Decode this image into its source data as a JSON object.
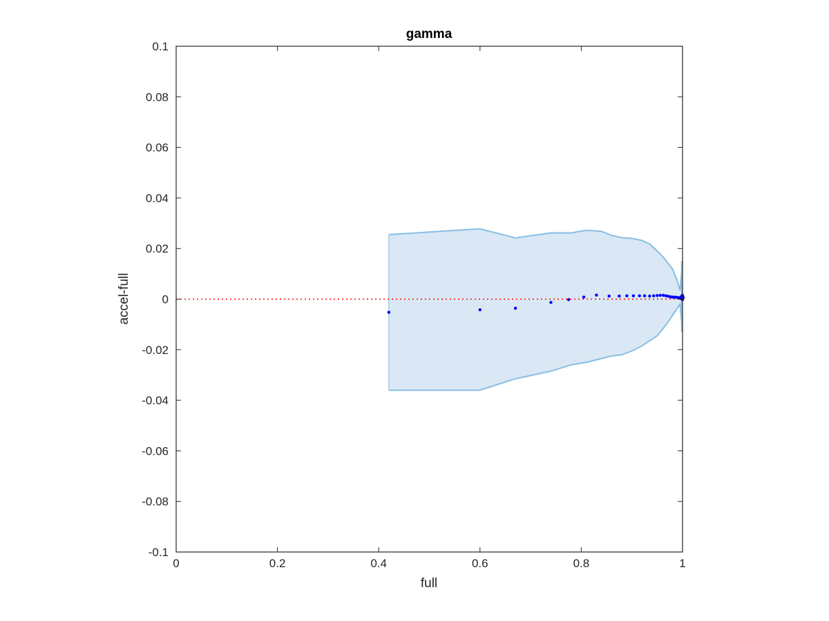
{
  "chart_data": {
    "type": "scatter",
    "title": "gamma",
    "xlabel": "full",
    "ylabel": "accel-full",
    "xlim": [
      0,
      1
    ],
    "ylim": [
      -0.1,
      0.1
    ],
    "grid": false,
    "legend": "none",
    "x_ticks": [
      0,
      0.2,
      0.4,
      0.6,
      0.8,
      1
    ],
    "x_tick_labels": [
      "0",
      "0.2",
      "0.4",
      "0.6",
      "0.8",
      "1"
    ],
    "y_ticks": [
      -0.1,
      -0.08,
      -0.06,
      -0.04,
      -0.02,
      0,
      0.02,
      0.04,
      0.06,
      0.08,
      0.1
    ],
    "y_tick_labels": [
      "-0.1",
      "-0.08",
      "-0.06",
      "-0.04",
      "-0.02",
      "0",
      "0.02",
      "0.04",
      "0.06",
      "0.08",
      "0.1"
    ],
    "reference_line": {
      "y": 0,
      "style": "dotted",
      "color": "#ff0000"
    },
    "band": {
      "upper": [
        {
          "x": 0.42,
          "y": 0.0255
        },
        {
          "x": 0.6,
          "y": 0.0278
        },
        {
          "x": 0.67,
          "y": 0.0242
        },
        {
          "x": 0.74,
          "y": 0.0262
        },
        {
          "x": 0.78,
          "y": 0.0262
        },
        {
          "x": 0.81,
          "y": 0.0272
        },
        {
          "x": 0.84,
          "y": 0.0268
        },
        {
          "x": 0.86,
          "y": 0.0252
        },
        {
          "x": 0.88,
          "y": 0.0243
        },
        {
          "x": 0.9,
          "y": 0.024
        },
        {
          "x": 0.92,
          "y": 0.0232
        },
        {
          "x": 0.935,
          "y": 0.0218
        },
        {
          "x": 0.95,
          "y": 0.019
        },
        {
          "x": 0.96,
          "y": 0.017
        },
        {
          "x": 0.97,
          "y": 0.0145
        },
        {
          "x": 0.98,
          "y": 0.012
        },
        {
          "x": 0.99,
          "y": 0.007
        },
        {
          "x": 0.995,
          "y": 0.0035
        },
        {
          "x": 1.0,
          "y": 0.015
        }
      ],
      "lower": [
        {
          "x": 0.42,
          "y": -0.036
        },
        {
          "x": 0.6,
          "y": -0.036
        },
        {
          "x": 0.67,
          "y": -0.0315
        },
        {
          "x": 0.74,
          "y": -0.0285
        },
        {
          "x": 0.78,
          "y": -0.026
        },
        {
          "x": 0.81,
          "y": -0.025
        },
        {
          "x": 0.84,
          "y": -0.0235
        },
        {
          "x": 0.86,
          "y": -0.0225
        },
        {
          "x": 0.88,
          "y": -0.022
        },
        {
          "x": 0.9,
          "y": -0.0205
        },
        {
          "x": 0.92,
          "y": -0.0185
        },
        {
          "x": 0.935,
          "y": -0.0165
        },
        {
          "x": 0.95,
          "y": -0.0145
        },
        {
          "x": 0.96,
          "y": -0.012
        },
        {
          "x": 0.97,
          "y": -0.0095
        },
        {
          "x": 0.98,
          "y": -0.0065
        },
        {
          "x": 0.99,
          "y": -0.0035
        },
        {
          "x": 0.995,
          "y": -0.002
        },
        {
          "x": 1.0,
          "y": -0.013
        }
      ],
      "fill_color": "#d9e8f4",
      "edge_color": "#88bde3"
    },
    "series": [
      {
        "color": "#0000ff",
        "points": [
          {
            "x": 0.42,
            "y": -0.0052
          },
          {
            "x": 0.6,
            "y": -0.0042
          },
          {
            "x": 0.67,
            "y": -0.0036
          },
          {
            "x": 0.74,
            "y": -0.0013
          },
          {
            "x": 0.775,
            "y": -0.0002
          },
          {
            "x": 0.805,
            "y": 0.0008
          },
          {
            "x": 0.83,
            "y": 0.0016
          },
          {
            "x": 0.855,
            "y": 0.0012
          },
          {
            "x": 0.875,
            "y": 0.0012
          },
          {
            "x": 0.89,
            "y": 0.0013
          },
          {
            "x": 0.903,
            "y": 0.0013
          },
          {
            "x": 0.915,
            "y": 0.0013
          },
          {
            "x": 0.925,
            "y": 0.0013
          },
          {
            "x": 0.935,
            "y": 0.0012
          },
          {
            "x": 0.943,
            "y": 0.0013
          },
          {
            "x": 0.95,
            "y": 0.0014
          },
          {
            "x": 0.956,
            "y": 0.0015
          },
          {
            "x": 0.962,
            "y": 0.0015
          },
          {
            "x": 0.967,
            "y": 0.0013
          },
          {
            "x": 0.972,
            "y": 0.0011
          },
          {
            "x": 0.976,
            "y": 0.0009
          },
          {
            "x": 0.98,
            "y": 0.0008
          },
          {
            "x": 0.984,
            "y": 0.0008
          },
          {
            "x": 0.988,
            "y": 0.0007
          },
          {
            "x": 0.991,
            "y": 0.0006
          },
          {
            "x": 0.994,
            "y": 0.0005
          },
          {
            "x": 0.996,
            "y": 0.0004
          },
          {
            "x": 0.998,
            "y": 0.0006
          },
          {
            "x": 0.999,
            "y": 0.0012
          },
          {
            "x": 1.0,
            "y": 0.0005
          },
          {
            "x": 1.0,
            "y": -0.0002
          },
          {
            "x": 1.0,
            "y": 0.0015
          }
        ]
      }
    ]
  }
}
